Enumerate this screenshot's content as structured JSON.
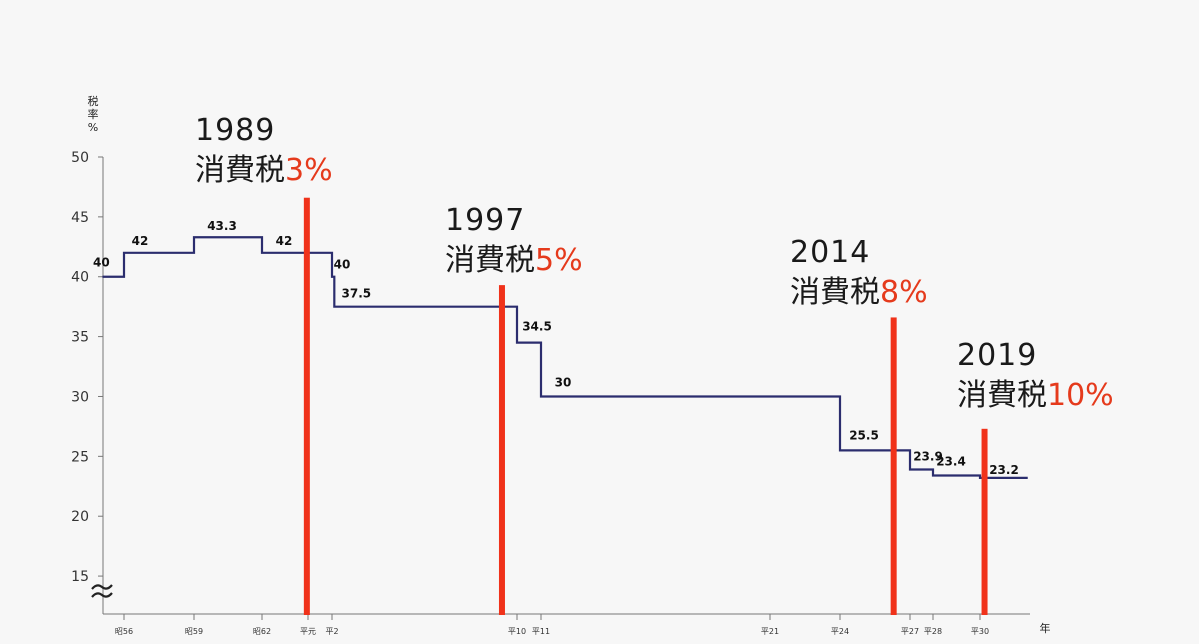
{
  "chart_data": {
    "type": "line",
    "ylabel": "税率%",
    "xlabel": "年",
    "ylim": [
      12,
      50
    ],
    "yticks": [
      15,
      20,
      25,
      30,
      35,
      40,
      45,
      50
    ],
    "x_ticks": [
      {
        "label": "昭56",
        "year": 1981
      },
      {
        "label": "昭59",
        "year": 1984
      },
      {
        "label": "昭62",
        "year": 1987
      },
      {
        "label": "平元",
        "year": 1989
      },
      {
        "label": "平2",
        "year": 1990
      },
      {
        "label": "平10",
        "year": 1998
      },
      {
        "label": "平11",
        "year": 1999
      },
      {
        "label": "平21",
        "year": 2009
      },
      {
        "label": "平24",
        "year": 2012
      },
      {
        "label": "平27",
        "year": 2015
      },
      {
        "label": "平28",
        "year": 2016
      },
      {
        "label": "平30",
        "year": 2018
      }
    ],
    "series": [
      {
        "type": "step",
        "color": "#2b2d6e",
        "points": [
          {
            "year": 1980.1,
            "value": 40,
            "label": "40"
          },
          {
            "year": 1981,
            "value": 42,
            "label": "42"
          },
          {
            "year": 1984,
            "value": 43.3,
            "label": "43.3"
          },
          {
            "year": 1987,
            "value": 42,
            "label": "42"
          },
          {
            "year": 1990,
            "value": 40,
            "label": "40"
          },
          {
            "year": 1990.1,
            "value": 37.5,
            "label": "37.5"
          },
          {
            "year": 1998,
            "value": 34.5,
            "label": "34.5"
          },
          {
            "year": 1999,
            "value": 30,
            "label": "30"
          },
          {
            "year": 2012,
            "value": 25.5,
            "label": "25.5"
          },
          {
            "year": 2015,
            "value": 23.9,
            "label": "23.9"
          },
          {
            "year": 2016,
            "value": 23.4,
            "label": "23.4"
          },
          {
            "year": 2018,
            "value": 23.2,
            "label": "23.2"
          }
        ],
        "end_year": 2020.1
      }
    ],
    "events": [
      {
        "year_label": "1989",
        "name": "消費税",
        "rate": "3%",
        "year": 1988.95,
        "top_value": 46.6
      },
      {
        "year_label": "1997",
        "name": "消費税",
        "rate": "5%",
        "year": 1997.35,
        "top_value": 39.3
      },
      {
        "year_label": "2014",
        "name": "消費税",
        "rate": "8%",
        "year": 2014.3,
        "top_value": 36.6
      },
      {
        "year_label": "2019",
        "name": "消費税",
        "rate": "10%",
        "year": 2018.2,
        "top_value": 27.3
      }
    ],
    "colors": {
      "line": "#2b2d6e",
      "event": "#f0321a",
      "accent_text": "#e53a1c"
    }
  }
}
